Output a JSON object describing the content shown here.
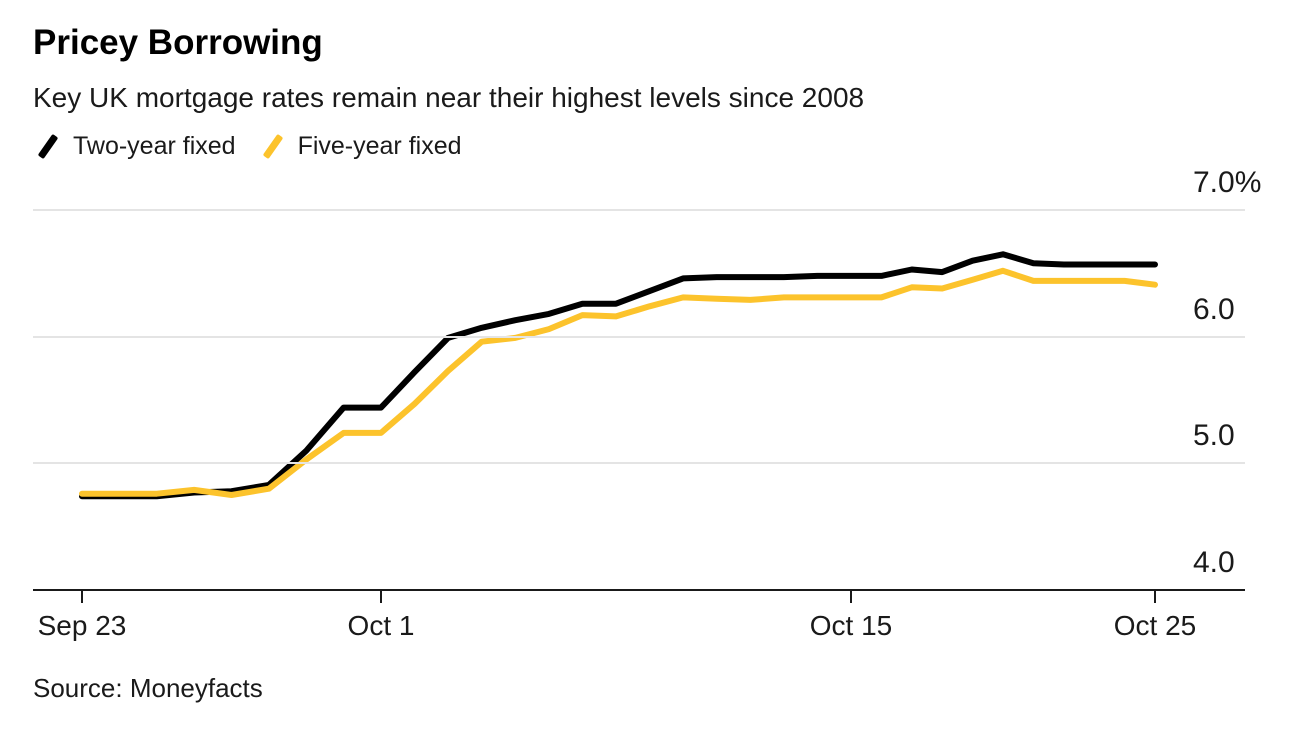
{
  "header": {
    "title": "Pricey Borrowing",
    "subtitle": "Key UK mortgage rates remain near their highest levels since 2008"
  },
  "legend": [
    {
      "label": "Two-year fixed",
      "color": "#000000",
      "marker": "slash-line-marker"
    },
    {
      "label": "Five-year fixed",
      "color": "#FCC32C",
      "marker": "slash-line-marker"
    }
  ],
  "source": {
    "text": "Source: Moneyfacts"
  },
  "colors": {
    "two_year": "#000000",
    "five_year": "#FCC32C",
    "gridline": "#e4e4e4",
    "axis": "#1a1a1a"
  },
  "chart_data": {
    "type": "line",
    "title": "Pricey Borrowing",
    "subtitle": "Key UK mortgage rates remain near their highest levels since 2008",
    "unit": "%",
    "xlabel": "",
    "ylabel": "",
    "ylim": [
      4.0,
      7.0
    ],
    "grid": "horizontal",
    "legend_position": "top-left",
    "x": [
      "Sep 23",
      "Sep 24",
      "Sep 25",
      "Sep 26",
      "Sep 27",
      "Sep 28",
      "Sep 29",
      "Sep 30",
      "Oct 1",
      "Oct 2",
      "Oct 3",
      "Oct 4",
      "Oct 5",
      "Oct 6",
      "Oct 7",
      "Oct 8",
      "Oct 9",
      "Oct 10",
      "Oct 11",
      "Oct 12",
      "Oct 13",
      "Oct 14",
      "Oct 15",
      "Oct 16",
      "Oct 17",
      "Oct 18",
      "Oct 19",
      "Oct 20",
      "Oct 21",
      "Oct 22",
      "Oct 23",
      "Oct 24",
      "Oct 25"
    ],
    "series": [
      {
        "name": "Two-year fixed",
        "color": "#000000",
        "values": [
          4.74,
          4.74,
          4.74,
          4.77,
          4.78,
          4.83,
          5.1,
          5.44,
          5.44,
          5.72,
          5.99,
          6.07,
          6.13,
          6.18,
          6.26,
          6.26,
          6.36,
          6.46,
          6.47,
          6.47,
          6.47,
          6.48,
          6.48,
          6.48,
          6.53,
          6.51,
          6.6,
          6.65,
          6.58,
          6.57,
          6.57,
          6.57,
          6.57
        ]
      },
      {
        "name": "Five-year fixed",
        "color": "#FCC32C",
        "values": [
          4.76,
          4.76,
          4.76,
          4.79,
          4.75,
          4.8,
          5.03,
          5.24,
          5.24,
          5.47,
          5.73,
          5.96,
          5.99,
          6.06,
          6.17,
          6.16,
          6.24,
          6.31,
          6.3,
          6.29,
          6.31,
          6.31,
          6.31,
          6.31,
          6.39,
          6.38,
          6.45,
          6.52,
          6.44,
          6.44,
          6.44,
          6.44,
          6.41
        ]
      }
    ],
    "yticks": [
      {
        "label": "7.0%",
        "value": 7.0
      },
      {
        "label": "6.0",
        "value": 6.0
      },
      {
        "label": "5.0",
        "value": 5.0
      },
      {
        "label": "4.0",
        "value": 4.0
      }
    ],
    "xticks": [
      {
        "label": "Sep 23",
        "day": 0
      },
      {
        "label": "Oct 1",
        "day": 8
      },
      {
        "label": "Oct 15",
        "day": 22
      },
      {
        "label": "Oct 25",
        "day": 32
      }
    ]
  }
}
